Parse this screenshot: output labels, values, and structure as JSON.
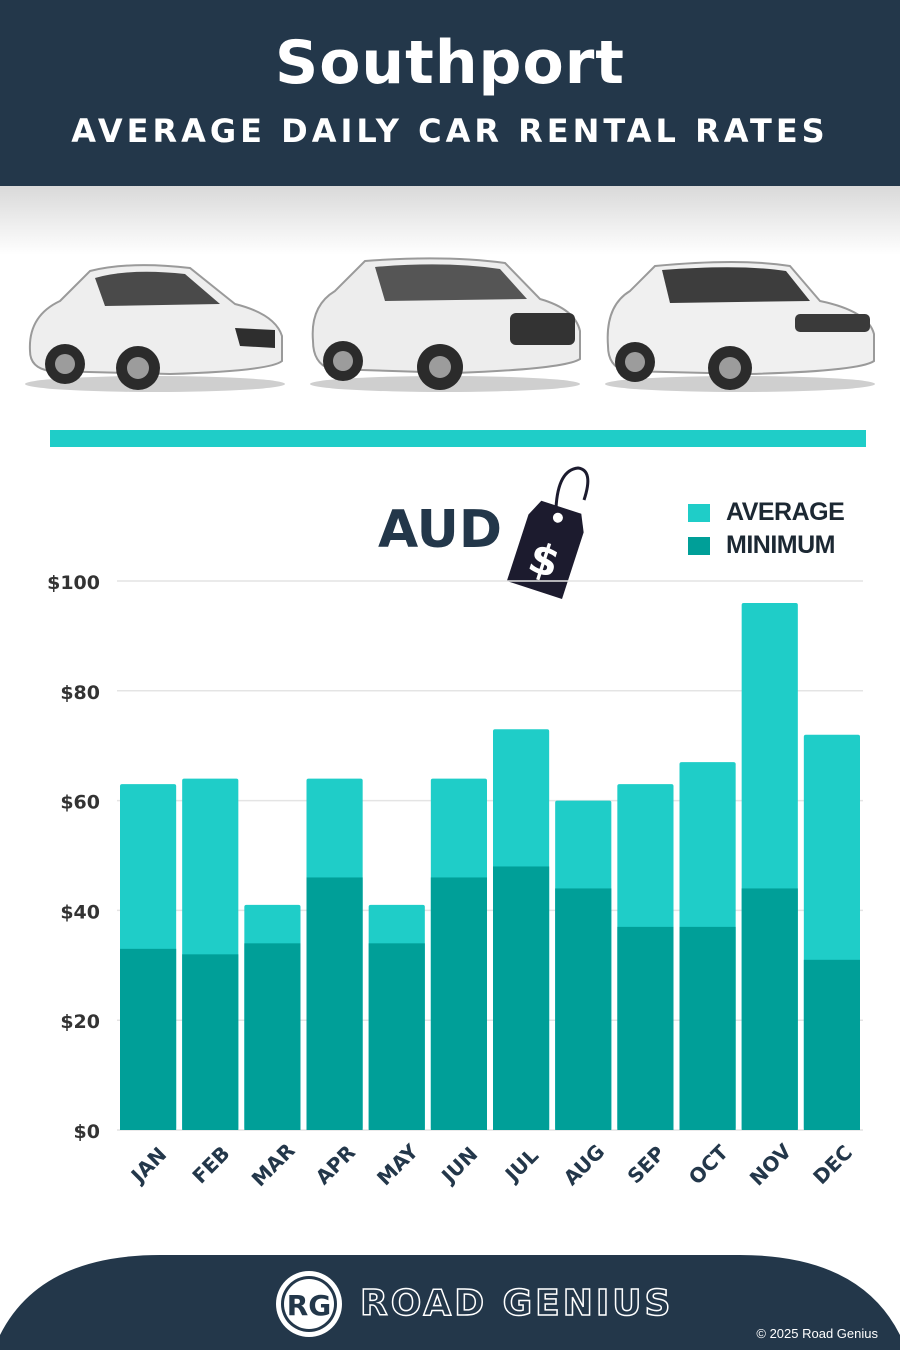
{
  "header": {
    "title": "Southport",
    "subtitle": "AVERAGE DAILY CAR RENTAL RATES"
  },
  "currency_label": "AUD",
  "price_tag_icon": "dollar-price-tag-icon",
  "brand": {
    "logo_text": "RG",
    "name": "ROAD GENIUS",
    "copyright": "© 2025 Road Genius"
  },
  "colors": {
    "navy": "#23374a",
    "average": "#1fcdc8",
    "minimum": "#009f98",
    "tick_text": "#333333",
    "month_text": "#23374a"
  },
  "chart_data": {
    "type": "bar",
    "stacked_overlay": true,
    "currency": "AUD",
    "categories": [
      "JAN",
      "FEB",
      "MAR",
      "APR",
      "MAY",
      "JUN",
      "JUL",
      "AUG",
      "SEP",
      "OCT",
      "NOV",
      "DEC"
    ],
    "series": [
      {
        "name": "AVERAGE",
        "color": "#1fcdc8",
        "values": [
          63,
          64,
          41,
          64,
          41,
          64,
          73,
          60,
          63,
          67,
          96,
          72
        ]
      },
      {
        "name": "MINIMUM",
        "color": "#009f98",
        "values": [
          33,
          32,
          34,
          46,
          34,
          46,
          48,
          44,
          37,
          37,
          44,
          31
        ]
      }
    ],
    "yticks": [
      "$0",
      "$20",
      "$40",
      "$60",
      "$80",
      "$100"
    ],
    "ylim": [
      0,
      100
    ],
    "grid": true,
    "legend_position": "top-right"
  }
}
